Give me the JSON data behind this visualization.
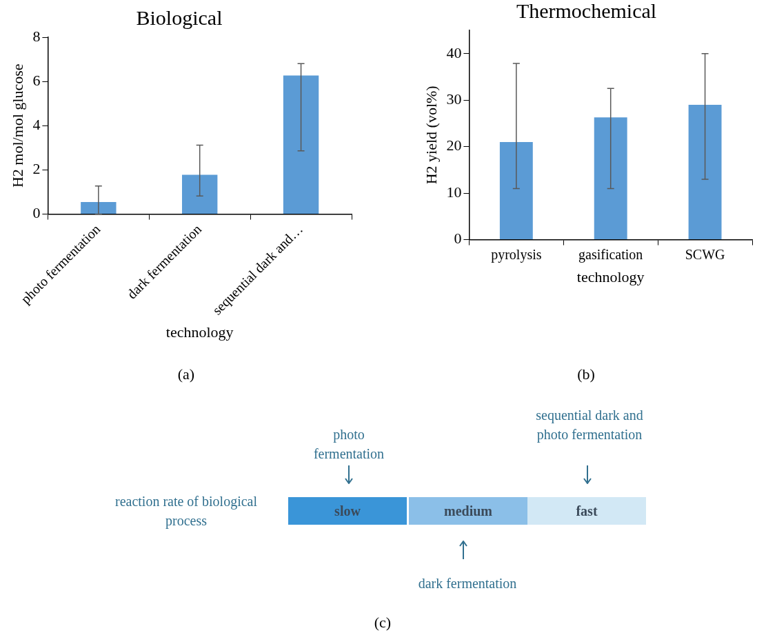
{
  "chart_data": [
    {
      "type": "bar",
      "title": "Biological",
      "xlabel": "technology",
      "ylabel": "H2 mol/mol glucose",
      "categories": [
        "photo fermentation",
        "dark fermentation",
        "sequential dark and…"
      ],
      "values": [
        0.55,
        1.78,
        6.27
      ],
      "color": "#5b9bd5",
      "errors": [
        [
          0,
          1.27
        ],
        [
          0.82,
          3.12
        ],
        [
          2.86,
          6.81
        ]
      ],
      "ylim": [
        0,
        8
      ],
      "yticks": [
        0,
        2,
        4,
        6,
        8
      ],
      "grid": false,
      "legend": false,
      "annotations": [
        "(a)"
      ]
    },
    {
      "type": "bar",
      "title": "Thermochemical",
      "xlabel": "technology",
      "ylabel": "H2 yield (vol%)",
      "categories": [
        "pyrolysis",
        "gasification",
        "SCWG"
      ],
      "values": [
        21,
        26.3,
        29
      ],
      "color": "#5b9bd5",
      "errors": [
        [
          11,
          37.9
        ],
        [
          11,
          32.5
        ],
        [
          13,
          40
        ]
      ],
      "ylim": [
        0,
        45
      ],
      "yticks": [
        0,
        10,
        20,
        30,
        40
      ],
      "grid": false,
      "legend": false,
      "annotations": [
        "(b)"
      ]
    },
    {
      "type": "other",
      "annotations": [
        "reaction rate of biological process",
        "slow",
        "medium",
        "fast",
        "photo fermentation",
        "dark fermentation",
        "sequential dark and photo fermentation",
        "(c)"
      ]
    }
  ]
}
